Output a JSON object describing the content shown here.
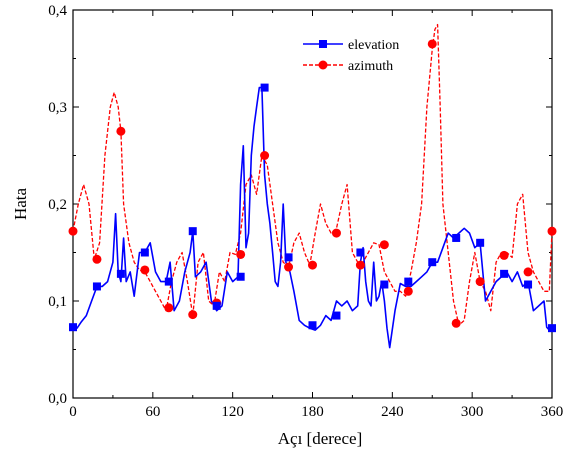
{
  "chart_data": {
    "type": "line",
    "title": "",
    "xlabel": "Açı [derece]",
    "ylabel": "Hata",
    "xlim": [
      0,
      360
    ],
    "ylim": [
      0.0,
      0.4
    ],
    "x_ticks": [
      "0",
      "60",
      "120",
      "180",
      "240",
      "300",
      "360"
    ],
    "y_ticks": [
      "0,0",
      "0,1",
      "0,2",
      "0,3",
      "0,4"
    ],
    "grid": false,
    "legend_position": "top-right",
    "series": [
      {
        "name": "elevation",
        "color": "#0000ff",
        "line_style": "solid",
        "marker": "square",
        "x": [
          0,
          3,
          6,
          10,
          14,
          18,
          22,
          26,
          30,
          32,
          34,
          36,
          38,
          40,
          43,
          46,
          50,
          54,
          58,
          62,
          66,
          70,
          73,
          76,
          80,
          84,
          88,
          90,
          92,
          96,
          100,
          104,
          108,
          112,
          116,
          120,
          124,
          126,
          128,
          130,
          132,
          134,
          136,
          138,
          140,
          142,
          144,
          146,
          148,
          150,
          152,
          154,
          156,
          158,
          160,
          163,
          166,
          170,
          174,
          178,
          182,
          186,
          190,
          194,
          198,
          202,
          206,
          210,
          214,
          216,
          218,
          220,
          222,
          224,
          226,
          228,
          230,
          232,
          234,
          236,
          238,
          242,
          246,
          250,
          254,
          258,
          262,
          266,
          270,
          274,
          278,
          282,
          286,
          290,
          294,
          298,
          302,
          306,
          310,
          314,
          318,
          322,
          326,
          330,
          334,
          338,
          342,
          346,
          350,
          354,
          356,
          358,
          360
        ],
        "y": [
          0.075,
          0.072,
          0.078,
          0.085,
          0.1,
          0.115,
          0.115,
          0.12,
          0.14,
          0.19,
          0.13,
          0.12,
          0.165,
          0.12,
          0.13,
          0.105,
          0.15,
          0.15,
          0.16,
          0.13,
          0.12,
          0.12,
          0.14,
          0.09,
          0.1,
          0.13,
          0.15,
          0.172,
          0.125,
          0.13,
          0.14,
          0.1,
          0.09,
          0.095,
          0.13,
          0.12,
          0.125,
          0.22,
          0.26,
          0.155,
          0.17,
          0.25,
          0.28,
          0.3,
          0.32,
          0.32,
          0.23,
          0.2,
          0.18,
          0.15,
          0.12,
          0.115,
          0.14,
          0.2,
          0.14,
          0.13,
          0.11,
          0.08,
          0.075,
          0.072,
          0.07,
          0.075,
          0.085,
          0.08,
          0.1,
          0.095,
          0.1,
          0.09,
          0.095,
          0.14,
          0.155,
          0.12,
          0.1,
          0.095,
          0.14,
          0.1,
          0.105,
          0.12,
          0.1,
          0.072,
          0.052,
          0.09,
          0.118,
          0.115,
          0.115,
          0.12,
          0.125,
          0.13,
          0.14,
          0.14,
          0.155,
          0.17,
          0.165,
          0.17,
          0.175,
          0.17,
          0.155,
          0.16,
          0.1,
          0.11,
          0.12,
          0.125,
          0.13,
          0.12,
          0.13,
          0.115,
          0.12,
          0.09,
          0.095,
          0.1,
          0.073,
          0.07,
          0.073
        ]
      },
      {
        "name": "azimuth",
        "color": "#ff0000",
        "line_style": "dashed",
        "marker": "circle",
        "x": [
          0,
          4,
          8,
          12,
          16,
          20,
          24,
          28,
          31,
          34,
          36,
          38,
          42,
          46,
          50,
          54,
          58,
          62,
          66,
          70,
          74,
          78,
          82,
          86,
          90,
          94,
          98,
          102,
          106,
          110,
          114,
          118,
          122,
          126,
          130,
          134,
          138,
          142,
          146,
          150,
          154,
          158,
          162,
          166,
          170,
          174,
          178,
          182,
          186,
          190,
          194,
          198,
          202,
          206,
          210,
          214,
          218,
          222,
          226,
          230,
          234,
          238,
          242,
          246,
          250,
          254,
          258,
          262,
          266,
          270,
          272,
          274,
          276,
          278,
          282,
          286,
          290,
          294,
          298,
          302,
          306,
          310,
          314,
          318,
          322,
          326,
          330,
          334,
          338,
          342,
          346,
          350,
          354,
          358,
          360
        ],
        "y": [
          0.172,
          0.2,
          0.22,
          0.2,
          0.143,
          0.16,
          0.25,
          0.3,
          0.315,
          0.3,
          0.275,
          0.2,
          0.16,
          0.14,
          0.132,
          0.13,
          0.12,
          0.11,
          0.1,
          0.09,
          0.12,
          0.14,
          0.15,
          0.12,
          0.085,
          0.14,
          0.15,
          0.1,
          0.095,
          0.13,
          0.12,
          0.15,
          0.148,
          0.17,
          0.22,
          0.23,
          0.21,
          0.25,
          0.24,
          0.2,
          0.16,
          0.14,
          0.135,
          0.16,
          0.17,
          0.15,
          0.137,
          0.17,
          0.2,
          0.18,
          0.17,
          0.175,
          0.2,
          0.22,
          0.15,
          0.14,
          0.14,
          0.15,
          0.16,
          0.158,
          0.13,
          0.12,
          0.11,
          0.11,
          0.105,
          0.13,
          0.16,
          0.2,
          0.3,
          0.36,
          0.38,
          0.385,
          0.3,
          0.2,
          0.15,
          0.1,
          0.075,
          0.08,
          0.12,
          0.15,
          0.12,
          0.11,
          0.09,
          0.14,
          0.15,
          0.15,
          0.145,
          0.2,
          0.21,
          0.15,
          0.13,
          0.12,
          0.11,
          0.11,
          0.172
        ]
      }
    ],
    "markers": {
      "elevation": {
        "x": [
          0,
          18,
          36,
          54,
          72,
          90,
          108,
          126,
          144,
          162,
          180,
          198,
          216,
          234,
          252,
          270,
          288,
          306,
          324,
          342,
          360
        ],
        "y": [
          0.073,
          0.115,
          0.128,
          0.15,
          0.12,
          0.172,
          0.095,
          0.125,
          0.32,
          0.145,
          0.075,
          0.085,
          0.15,
          0.117,
          0.12,
          0.14,
          0.165,
          0.16,
          0.128,
          0.117,
          0.072
        ]
      },
      "azimuth": {
        "x": [
          0,
          18,
          36,
          54,
          72,
          90,
          108,
          126,
          144,
          162,
          180,
          198,
          216,
          234,
          252,
          270,
          288,
          306,
          324,
          342,
          360
        ],
        "y": [
          0.172,
          0.143,
          0.275,
          0.132,
          0.093,
          0.086,
          0.098,
          0.148,
          0.25,
          0.135,
          0.137,
          0.17,
          0.137,
          0.158,
          0.11,
          0.365,
          0.077,
          0.12,
          0.147,
          0.13,
          0.172
        ]
      }
    }
  }
}
